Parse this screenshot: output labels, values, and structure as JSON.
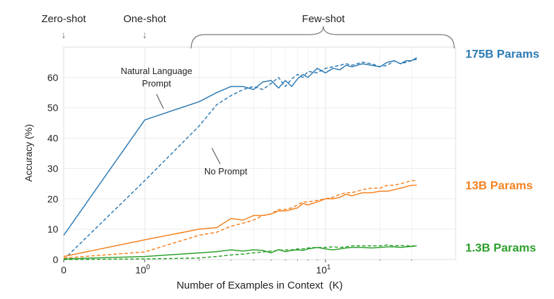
{
  "chart_data": {
    "type": "line",
    "xlabel": "Number of Examples in Context  (K)",
    "ylabel": "Accuracy (%)",
    "x_scale": "log (with K = 0 placed at the left edge)",
    "xlim": [
      0,
      32
    ],
    "ylim": [
      0,
      70
    ],
    "y_ticks": [
      0,
      10,
      20,
      30,
      40,
      50,
      60
    ],
    "x_ticks": [
      {
        "value": 0,
        "label": "0"
      },
      {
        "value": 1,
        "label": "10",
        "exp": "0"
      },
      {
        "value": 10,
        "label": "10",
        "exp": "1"
      }
    ],
    "grid": true,
    "regions": {
      "zero_shot": "Zero-shot",
      "one_shot": "One-shot",
      "few_shot": "Few-shot"
    },
    "annotations": {
      "natural_language_line1": "Natural Language",
      "natural_language_line2": "Prompt",
      "no_prompt": "No Prompt"
    },
    "colors": {
      "175B": "#2e7bb4",
      "13B": "#f58220",
      "1.3B": "#2ca02c"
    },
    "series": [
      {
        "name": "175B Params",
        "model": "175B",
        "prompt": "natural_language",
        "style": "solid",
        "x": [
          0,
          1,
          2,
          2.5,
          3,
          3.5,
          4,
          4.5,
          5,
          5.5,
          6,
          6.5,
          7,
          7.5,
          8,
          9,
          10,
          11,
          12,
          13,
          14,
          16,
          18,
          20,
          22,
          24,
          26,
          28,
          30,
          32
        ],
        "y": [
          8,
          46,
          52,
          55,
          57,
          57,
          56,
          58.5,
          59,
          56.5,
          59,
          57,
          59.5,
          61,
          60,
          63,
          61.5,
          63,
          62.5,
          64,
          63.5,
          64.5,
          64,
          63.5,
          65,
          65.5,
          64.5,
          65.5,
          65.5,
          66.5
        ]
      },
      {
        "name": "",
        "model": "175B",
        "prompt": "no_prompt",
        "style": "dashed",
        "x": [
          0,
          1,
          2,
          2.5,
          3,
          3.5,
          4,
          4.5,
          5,
          5.5,
          6,
          6.5,
          7,
          7.5,
          8,
          9,
          10,
          11,
          12,
          13,
          14,
          16,
          18,
          20,
          22,
          24,
          26,
          28,
          30,
          32
        ],
        "y": [
          0,
          26,
          44,
          51,
          54,
          56,
          57,
          56,
          58,
          60,
          57,
          59.5,
          61,
          60,
          62,
          61.5,
          63,
          63.5,
          64,
          64.5,
          64,
          65,
          64.5,
          63.5,
          64,
          65.5,
          64.5,
          65,
          65.5,
          66
        ]
      },
      {
        "name": "13B Params",
        "model": "13B",
        "prompt": "natural_language",
        "style": "solid",
        "x": [
          0,
          1,
          2,
          2.5,
          3,
          3.5,
          4,
          4.5,
          5,
          5.5,
          6,
          6.5,
          7,
          7.5,
          8,
          9,
          10,
          11,
          12,
          13,
          14,
          16,
          18,
          20,
          22,
          24,
          26,
          28,
          30,
          32
        ],
        "y": [
          1,
          6.5,
          10,
          10.5,
          13.5,
          13,
          14.5,
          14.5,
          15,
          16,
          16,
          16.5,
          17,
          18.5,
          18,
          19,
          20,
          20,
          20.5,
          21.5,
          21,
          22,
          22,
          22.5,
          22.5,
          23,
          23.5,
          24,
          24.5,
          24.5
        ]
      },
      {
        "name": "",
        "model": "13B",
        "prompt": "no_prompt",
        "style": "dashed",
        "x": [
          0,
          1,
          2,
          2.5,
          3,
          3.5,
          4,
          4.5,
          5,
          5.5,
          6,
          6.5,
          7,
          7.5,
          8,
          9,
          10,
          11,
          12,
          13,
          14,
          16,
          18,
          20,
          22,
          24,
          26,
          28,
          30,
          32
        ],
        "y": [
          0.5,
          2.5,
          8,
          9,
          11,
          12,
          13,
          14.5,
          15,
          16.5,
          16.5,
          17,
          18,
          19,
          19,
          19.5,
          20,
          20.5,
          21.5,
          22,
          22,
          23,
          23.5,
          23.5,
          24.5,
          24.5,
          25,
          25.5,
          26,
          26
        ]
      },
      {
        "name": "1.3B Params",
        "model": "1.3B",
        "prompt": "natural_language",
        "style": "solid",
        "x": [
          0,
          1,
          2,
          2.5,
          3,
          3.5,
          4,
          4.5,
          5,
          5.5,
          6,
          6.5,
          7,
          7.5,
          8,
          9,
          10,
          11,
          12,
          13,
          14,
          16,
          18,
          20,
          22,
          24,
          26,
          28,
          30,
          32
        ],
        "y": [
          0.2,
          1,
          2.2,
          2.6,
          3.2,
          2.8,
          3.2,
          3,
          2.2,
          3.3,
          2.6,
          3,
          3.2,
          3,
          3.5,
          4,
          3.5,
          3.2,
          3.5,
          3.8,
          4,
          4,
          3.8,
          4,
          4.2,
          4.2,
          4,
          4.2,
          4.3,
          4.5
        ]
      },
      {
        "name": "",
        "model": "1.3B",
        "prompt": "no_prompt",
        "style": "dashed",
        "x": [
          0,
          1,
          2,
          2.5,
          3,
          3.5,
          4,
          4.5,
          5,
          5.5,
          6,
          6.5,
          7,
          7.5,
          8,
          9,
          10,
          11,
          12,
          13,
          14,
          16,
          18,
          20,
          22,
          24,
          26,
          28,
          30,
          32
        ],
        "y": [
          0,
          0.2,
          0.5,
          1,
          1.5,
          1.8,
          2.2,
          2.5,
          2.8,
          3,
          3.2,
          3.2,
          3.5,
          3.5,
          3.8,
          4,
          4,
          4.2,
          4,
          4.2,
          4.5,
          4.5,
          4.5,
          4.5,
          4.8,
          4.5,
          4.7,
          4.5,
          4.5,
          4.5
        ]
      }
    ]
  }
}
